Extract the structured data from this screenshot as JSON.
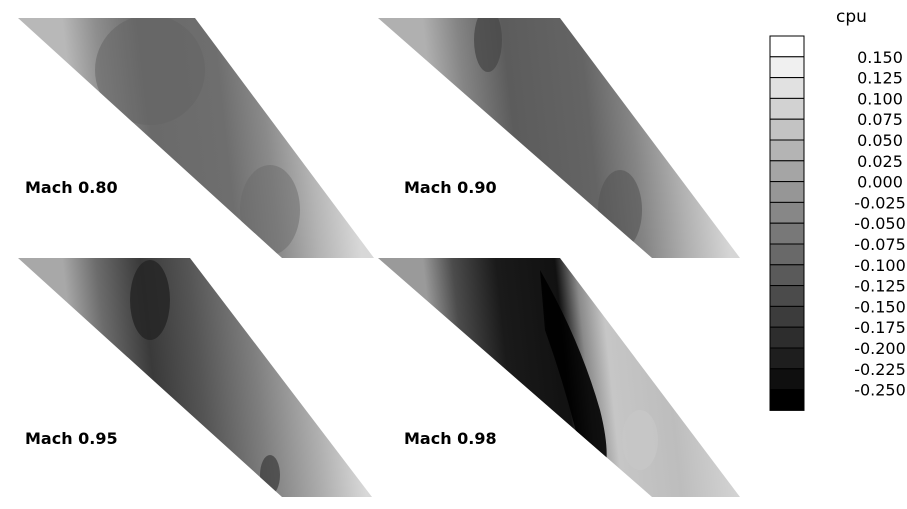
{
  "chart_data": {
    "type": "heatmap",
    "variable": "cpu",
    "panels": [
      {
        "label": "Mach 0.80",
        "mach": 0.8
      },
      {
        "label": "Mach 0.90",
        "mach": 0.9
      },
      {
        "label": "Mach 0.95",
        "mach": 0.95
      },
      {
        "label": "Mach 0.98",
        "mach": 0.98
      }
    ],
    "legend": {
      "title": "cpu",
      "levels": [
        "0.150",
        "0.125",
        "0.100",
        "0.075",
        "0.050",
        "0.025",
        "0.000",
        "-0.025",
        "-0.050",
        "-0.075",
        "-0.100",
        "-0.125",
        "-0.150",
        "-0.175",
        "-0.200",
        "-0.225",
        "-0.250"
      ],
      "placement": "right",
      "colormap": "grayscale (white = high, black = low)"
    }
  }
}
